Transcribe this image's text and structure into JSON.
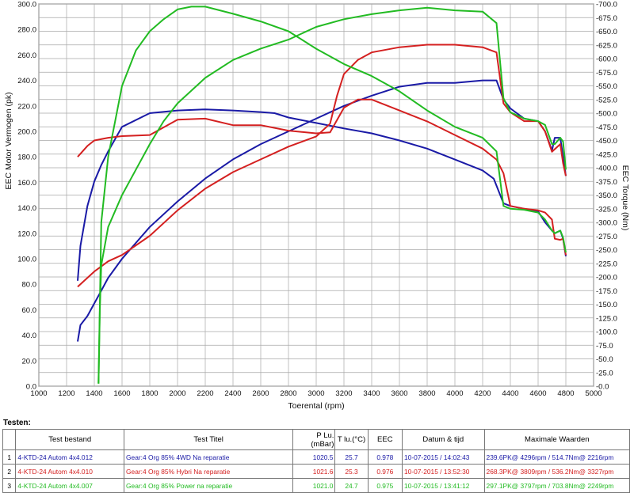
{
  "chart_data": {
    "type": "line",
    "xlabel": "Toerental (rpm)",
    "ylabel_left": "EEC Motor Vermogen (pk)",
    "ylabel_right": "EEC Torque (Nm)",
    "xlim": [
      1000,
      5000
    ],
    "ylim_left": [
      0,
      300
    ],
    "ylim_right": [
      0,
      700
    ],
    "x_ticks": [
      "1000",
      "1200",
      "1400",
      "1600",
      "1800",
      "2000",
      "2200",
      "2400",
      "2600",
      "2800",
      "3000",
      "3200",
      "3400",
      "3600",
      "3800",
      "4000",
      "4200",
      "4400",
      "4600",
      "4800",
      "5000"
    ],
    "y_left_ticks": [
      "0.0",
      "20.0",
      "40.0",
      "60.0",
      "80.0",
      "100.0",
      "120.0",
      "140.0",
      "160.0",
      "180.0",
      "200.0",
      "220.0",
      "240.0",
      "260.0",
      "280.0",
      "300.0"
    ],
    "y_right_ticks": [
      "0.0",
      "25.0",
      "50.0",
      "75.0",
      "100.0",
      "125.0",
      "150.0",
      "175.0",
      "200.0",
      "225.0",
      "250.0",
      "275.0",
      "300.0",
      "325.0",
      "350.0",
      "375.0",
      "400.0",
      "425.0",
      "450.0",
      "475.0",
      "500.0",
      "525.0",
      "550.0",
      "575.0",
      "600.0",
      "625.0",
      "650.0",
      "675.0",
      "700.0"
    ],
    "grid": true,
    "series": [
      {
        "color": "#1a1aa6",
        "axis": "left",
        "x": [
          1280,
          1300,
          1350,
          1400,
          1450,
          1500,
          1600,
          1800,
          2000,
          2200,
          2400,
          2600,
          2800,
          3000,
          3200,
          3400,
          3600,
          3800,
          4000,
          4200,
          4300,
          4350,
          4400,
          4500,
          4600,
          4650,
          4700,
          4720,
          4760,
          4780,
          4800
        ],
        "y": [
          35,
          48,
          55,
          65,
          75,
          85,
          100,
          125,
          145,
          163,
          178,
          190,
          200,
          210,
          220,
          228,
          235,
          238,
          238,
          240,
          240,
          225,
          218,
          210,
          208,
          200,
          185,
          195,
          195,
          180,
          165
        ]
      },
      {
        "color": "#1a1aa6",
        "axis": "right",
        "x": [
          1280,
          1300,
          1350,
          1400,
          1450,
          1500,
          1600,
          1800,
          2000,
          2200,
          2400,
          2600,
          2700,
          2800,
          3000,
          3200,
          3400,
          3600,
          3800,
          4000,
          4200,
          4280,
          4350,
          4400,
          4500,
          4600,
          4650,
          4700,
          4720,
          4760,
          4780,
          4800
        ],
        "y": [
          193,
          257,
          330,
          375,
          405,
          430,
          475,
          500,
          505,
          507,
          505,
          502,
          500,
          492,
          482,
          472,
          463,
          450,
          435,
          415,
          395,
          380,
          335,
          330,
          325,
          320,
          300,
          285,
          280,
          285,
          270,
          238
        ]
      },
      {
        "color": "#d42020",
        "axis": "left",
        "x": [
          1280,
          1350,
          1400,
          1500,
          1600,
          1800,
          2000,
          2200,
          2400,
          2600,
          2800,
          3000,
          3100,
          3150,
          3200,
          3300,
          3400,
          3600,
          3800,
          4000,
          4200,
          4300,
          4350,
          4400,
          4500,
          4600,
          4650,
          4700,
          4720,
          4760,
          4780,
          4800
        ],
        "y": [
          78,
          85,
          90,
          98,
          103,
          118,
          138,
          155,
          168,
          178,
          188,
          196,
          206,
          228,
          245,
          256,
          262,
          266,
          268,
          268,
          266,
          262,
          222,
          215,
          208,
          208,
          200,
          184,
          186,
          190,
          175,
          165
        ]
      },
      {
        "color": "#d42020",
        "axis": "right",
        "x": [
          1280,
          1350,
          1400,
          1500,
          1600,
          1800,
          2000,
          2200,
          2400,
          2600,
          2800,
          3000,
          3100,
          3200,
          3300,
          3400,
          3600,
          3800,
          4000,
          4200,
          4300,
          4350,
          4400,
          4500,
          4600,
          4650,
          4700,
          4720,
          4760,
          4780,
          4800
        ],
        "y": [
          420,
          440,
          450,
          455,
          458,
          460,
          488,
          490,
          478,
          478,
          468,
          463,
          465,
          510,
          525,
          525,
          505,
          485,
          460,
          435,
          415,
          390,
          330,
          325,
          322,
          318,
          305,
          270,
          268,
          270,
          240
        ]
      },
      {
        "color": "#22bb22",
        "axis": "left",
        "x": [
          1430,
          1440,
          1450,
          1500,
          1600,
          1700,
          1800,
          1900,
          2000,
          2200,
          2400,
          2600,
          2800,
          3000,
          3200,
          3400,
          3600,
          3800,
          4000,
          4200,
          4300,
          4350,
          4400,
          4500,
          4600,
          4650,
          4700,
          4720,
          4760,
          4780,
          4800
        ],
        "y": [
          2,
          60,
          95,
          125,
          150,
          170,
          190,
          208,
          222,
          242,
          256,
          265,
          272,
          282,
          288,
          292,
          295,
          297,
          295,
          294,
          285,
          226,
          215,
          210,
          208,
          205,
          190,
          190,
          195,
          192,
          170
        ]
      },
      {
        "color": "#22bb22",
        "axis": "right",
        "x": [
          1430,
          1440,
          1450,
          1500,
          1600,
          1700,
          1800,
          1900,
          2000,
          2100,
          2200,
          2400,
          2600,
          2800,
          3000,
          3200,
          3400,
          3600,
          3800,
          4000,
          4200,
          4300,
          4350,
          4400,
          4500,
          4600,
          4650,
          4700,
          4720,
          4760,
          4780,
          4800
        ],
        "y": [
          5,
          150,
          300,
          420,
          550,
          615,
          650,
          672,
          690,
          695,
          695,
          682,
          668,
          650,
          618,
          590,
          568,
          540,
          505,
          475,
          455,
          430,
          330,
          325,
          323,
          318,
          305,
          285,
          280,
          285,
          272,
          245
        ]
      }
    ]
  },
  "tests": {
    "title": "Testen:",
    "headers": [
      "Test bestand",
      "Test Titel",
      "P Lu.(mBar)",
      "T lu.(°C)",
      "EEC",
      "Datum & tijd",
      "Maximale Waarden"
    ],
    "rows": [
      {
        "n": "1",
        "file": "4-KTD-24  Autom 4x4.012",
        "title": "Gear:4  Org  85%   4WD  Na reparatie",
        "p": "1020.5",
        "t": "25.7",
        "eec": "0.978",
        "date": "10-07-2015 / 14:02:43",
        "max": "239.6PK@ 4296rpm / 514.7Nm@ 2216rpm",
        "color": "#1a1aa6"
      },
      {
        "n": "2",
        "file": "4-KTD-24  Autom 4x4.010",
        "title": "Gear:4  Org  85%   Hybri  Na reparatie",
        "p": "1021.6",
        "t": "25.3",
        "eec": "0.976",
        "date": "10-07-2015 / 13:52:30",
        "max": "268.3PK@ 3809rpm / 536.2Nm@ 3327rpm",
        "color": "#d42020"
      },
      {
        "n": "3",
        "file": "4-KTD-24  Autom 4x4.007",
        "title": "Gear:4  Org  85%   Power  na reparatie",
        "p": "1021.0",
        "t": "24.7",
        "eec": "0.975",
        "date": "10-07-2015 / 13:41:12",
        "max": "297.1PK@ 3797rpm / 703.8Nm@ 2249rpm",
        "color": "#22bb22"
      }
    ]
  }
}
